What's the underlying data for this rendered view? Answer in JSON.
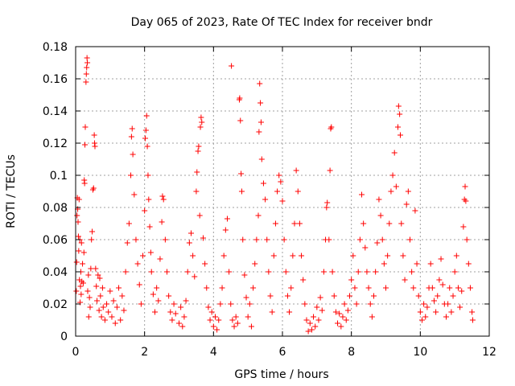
{
  "chart_data": {
    "type": "scatter",
    "title": "Day 065 of 2023, Rate Of TEC Index for receiver bndr",
    "xlabel": "GPS time / hours",
    "ylabel": "ROTI / TECUs",
    "xlim": [
      0,
      12
    ],
    "ylim": [
      0,
      0.18
    ],
    "x_ticks": [
      "0",
      "2",
      "4",
      "6",
      "8",
      "10",
      "12"
    ],
    "y_ticks": [
      "0",
      "0.02",
      "0.04",
      "0.06",
      "0.08",
      "0.1",
      "0.12",
      "0.14",
      "0.16",
      "0.18"
    ],
    "grid": true,
    "marker": "plus",
    "series": [
      {
        "color": "#ff0000",
        "points": [
          [
            0.02,
            0.028
          ],
          [
            0.03,
            0.046
          ],
          [
            0.04,
            0.075
          ],
          [
            0.05,
            0.086
          ],
          [
            0.06,
            0.079
          ],
          [
            0.07,
            0.071
          ],
          [
            0.08,
            0.062
          ],
          [
            0.09,
            0.053
          ],
          [
            0.1,
            0.085
          ],
          [
            0.11,
            0.035
          ],
          [
            0.12,
            0.06
          ],
          [
            0.13,
            0.021
          ],
          [
            0.14,
            0.031
          ],
          [
            0.15,
            0.04
          ],
          [
            0.16,
            0.026
          ],
          [
            0.17,
            0.058
          ],
          [
            0.18,
            0.034
          ],
          [
            0.2,
            0.045
          ],
          [
            0.22,
            0.033
          ],
          [
            0.24,
            0.052
          ],
          [
            0.25,
            0.097
          ],
          [
            0.26,
            0.095
          ],
          [
            0.27,
            0.119
          ],
          [
            0.28,
            0.13
          ],
          [
            0.3,
            0.158
          ],
          [
            0.31,
            0.163
          ],
          [
            0.32,
            0.167
          ],
          [
            0.33,
            0.173
          ],
          [
            0.34,
            0.17
          ],
          [
            0.35,
            0.028
          ],
          [
            0.37,
            0.038
          ],
          [
            0.38,
            0.012
          ],
          [
            0.4,
            0.024
          ],
          [
            0.42,
            0.018
          ],
          [
            0.44,
            0.042
          ],
          [
            0.46,
            0.06
          ],
          [
            0.48,
            0.065
          ],
          [
            0.5,
            0.091
          ],
          [
            0.52,
            0.092
          ],
          [
            0.54,
            0.125
          ],
          [
            0.55,
            0.12
          ],
          [
            0.56,
            0.118
          ],
          [
            0.58,
            0.042
          ],
          [
            0.6,
            0.031
          ],
          [
            0.62,
            0.022
          ],
          [
            0.65,
            0.038
          ],
          [
            0.68,
            0.016
          ],
          [
            0.7,
            0.036
          ],
          [
            0.72,
            0.025
          ],
          [
            0.75,
            0.012
          ],
          [
            0.78,
            0.03
          ],
          [
            0.8,
            0.018
          ],
          [
            0.85,
            0.01
          ],
          [
            0.9,
            0.02
          ],
          [
            0.95,
            0.015
          ],
          [
            1.0,
            0.028
          ],
          [
            1.05,
            0.012
          ],
          [
            1.1,
            0.022
          ],
          [
            1.15,
            0.008
          ],
          [
            1.2,
            0.018
          ],
          [
            1.25,
            0.03
          ],
          [
            1.3,
            0.01
          ],
          [
            1.35,
            0.025
          ],
          [
            1.4,
            0.016
          ],
          [
            1.45,
            0.04
          ],
          [
            1.5,
            0.058
          ],
          [
            1.55,
            0.07
          ],
          [
            1.6,
            0.1
          ],
          [
            1.62,
            0.124
          ],
          [
            1.64,
            0.129
          ],
          [
            1.66,
            0.113
          ],
          [
            1.7,
            0.088
          ],
          [
            1.75,
            0.06
          ],
          [
            1.8,
            0.045
          ],
          [
            1.85,
            0.032
          ],
          [
            1.9,
            0.02
          ],
          [
            1.95,
            0.05
          ],
          [
            2.0,
            0.078
          ],
          [
            2.02,
            0.123
          ],
          [
            2.04,
            0.128
          ],
          [
            2.06,
            0.137
          ],
          [
            2.08,
            0.118
          ],
          [
            2.1,
            0.1
          ],
          [
            2.12,
            0.085
          ],
          [
            2.15,
            0.068
          ],
          [
            2.18,
            0.052
          ],
          [
            2.2,
            0.04
          ],
          [
            2.25,
            0.026
          ],
          [
            2.3,
            0.015
          ],
          [
            2.35,
            0.03
          ],
          [
            2.4,
            0.022
          ],
          [
            2.45,
            0.048
          ],
          [
            2.5,
            0.071
          ],
          [
            2.52,
            0.087
          ],
          [
            2.55,
            0.085
          ],
          [
            2.6,
            0.06
          ],
          [
            2.65,
            0.04
          ],
          [
            2.7,
            0.025
          ],
          [
            2.75,
            0.015
          ],
          [
            2.8,
            0.01
          ],
          [
            2.85,
            0.02
          ],
          [
            2.9,
            0.014
          ],
          [
            3.0,
            0.008
          ],
          [
            3.05,
            0.018
          ],
          [
            3.1,
            0.006
          ],
          [
            3.15,
            0.012
          ],
          [
            3.2,
            0.022
          ],
          [
            3.25,
            0.04
          ],
          [
            3.3,
            0.058
          ],
          [
            3.35,
            0.064
          ],
          [
            3.4,
            0.05
          ],
          [
            3.45,
            0.037
          ],
          [
            3.5,
            0.09
          ],
          [
            3.52,
            0.102
          ],
          [
            3.55,
            0.115
          ],
          [
            3.57,
            0.118
          ],
          [
            3.6,
            0.075
          ],
          [
            3.62,
            0.13
          ],
          [
            3.64,
            0.136
          ],
          [
            3.66,
            0.133
          ],
          [
            3.7,
            0.061
          ],
          [
            3.75,
            0.045
          ],
          [
            3.8,
            0.03
          ],
          [
            3.85,
            0.018
          ],
          [
            3.9,
            0.01
          ],
          [
            3.95,
            0.015
          ],
          [
            4.0,
            0.006
          ],
          [
            4.05,
            0.012
          ],
          [
            4.1,
            0.004
          ],
          [
            4.15,
            0.01
          ],
          [
            4.2,
            0.02
          ],
          [
            4.25,
            0.03
          ],
          [
            4.3,
            0.05
          ],
          [
            4.35,
            0.066
          ],
          [
            4.4,
            0.073
          ],
          [
            4.45,
            0.04
          ],
          [
            4.5,
            0.02
          ],
          [
            4.52,
            0.168
          ],
          [
            4.55,
            0.01
          ],
          [
            4.6,
            0.006
          ],
          [
            4.65,
            0.012
          ],
          [
            4.7,
            0.008
          ],
          [
            4.75,
            0.147
          ],
          [
            4.76,
            0.148
          ],
          [
            4.78,
            0.134
          ],
          [
            4.8,
            0.101
          ],
          [
            4.82,
            0.09
          ],
          [
            4.85,
            0.06
          ],
          [
            4.9,
            0.038
          ],
          [
            4.95,
            0.024
          ],
          [
            5.0,
            0.012
          ],
          [
            5.05,
            0.02
          ],
          [
            5.1,
            0.006
          ],
          [
            5.15,
            0.03
          ],
          [
            5.2,
            0.045
          ],
          [
            5.25,
            0.06
          ],
          [
            5.3,
            0.075
          ],
          [
            5.32,
            0.127
          ],
          [
            5.34,
            0.157
          ],
          [
            5.36,
            0.145
          ],
          [
            5.38,
            0.133
          ],
          [
            5.4,
            0.11
          ],
          [
            5.45,
            0.095
          ],
          [
            5.5,
            0.085
          ],
          [
            5.55,
            0.06
          ],
          [
            5.6,
            0.04
          ],
          [
            5.65,
            0.025
          ],
          [
            5.7,
            0.015
          ],
          [
            5.75,
            0.05
          ],
          [
            5.8,
            0.07
          ],
          [
            5.85,
            0.09
          ],
          [
            5.9,
            0.1
          ],
          [
            5.95,
            0.096
          ],
          [
            6.0,
            0.084
          ],
          [
            6.05,
            0.06
          ],
          [
            6.1,
            0.04
          ],
          [
            6.15,
            0.025
          ],
          [
            6.2,
            0.015
          ],
          [
            6.25,
            0.03
          ],
          [
            6.3,
            0.05
          ],
          [
            6.35,
            0.07
          ],
          [
            6.4,
            0.103
          ],
          [
            6.45,
            0.09
          ],
          [
            6.5,
            0.07
          ],
          [
            6.55,
            0.05
          ],
          [
            6.6,
            0.035
          ],
          [
            6.65,
            0.02
          ],
          [
            6.7,
            0.01
          ],
          [
            6.75,
            0.003
          ],
          [
            6.8,
            0.008
          ],
          [
            6.85,
            0.004
          ],
          [
            6.9,
            0.012
          ],
          [
            6.95,
            0.006
          ],
          [
            7.0,
            0.018
          ],
          [
            7.05,
            0.01
          ],
          [
            7.1,
            0.024
          ],
          [
            7.15,
            0.016
          ],
          [
            7.2,
            0.04
          ],
          [
            7.25,
            0.06
          ],
          [
            7.28,
            0.08
          ],
          [
            7.3,
            0.083
          ],
          [
            7.35,
            0.06
          ],
          [
            7.38,
            0.103
          ],
          [
            7.4,
            0.129
          ],
          [
            7.42,
            0.13
          ],
          [
            7.45,
            0.04
          ],
          [
            7.5,
            0.025
          ],
          [
            7.55,
            0.015
          ],
          [
            7.6,
            0.008
          ],
          [
            7.65,
            0.014
          ],
          [
            7.7,
            0.006
          ],
          [
            7.75,
            0.012
          ],
          [
            7.8,
            0.02
          ],
          [
            7.85,
            0.01
          ],
          [
            7.9,
            0.016
          ],
          [
            7.95,
            0.025
          ],
          [
            8.0,
            0.035
          ],
          [
            8.05,
            0.05
          ],
          [
            8.1,
            0.03
          ],
          [
            8.15,
            0.02
          ],
          [
            8.2,
            0.04
          ],
          [
            8.25,
            0.06
          ],
          [
            8.3,
            0.088
          ],
          [
            8.35,
            0.07
          ],
          [
            8.4,
            0.055
          ],
          [
            8.45,
            0.04
          ],
          [
            8.5,
            0.03
          ],
          [
            8.55,
            0.02
          ],
          [
            8.6,
            0.012
          ],
          [
            8.65,
            0.025
          ],
          [
            8.7,
            0.04
          ],
          [
            8.75,
            0.058
          ],
          [
            8.8,
            0.085
          ],
          [
            8.85,
            0.075
          ],
          [
            8.9,
            0.06
          ],
          [
            8.95,
            0.045
          ],
          [
            9.0,
            0.03
          ],
          [
            9.05,
            0.05
          ],
          [
            9.1,
            0.07
          ],
          [
            9.15,
            0.09
          ],
          [
            9.2,
            0.1
          ],
          [
            9.25,
            0.114
          ],
          [
            9.3,
            0.093
          ],
          [
            9.35,
            0.13
          ],
          [
            9.37,
            0.143
          ],
          [
            9.4,
            0.138
          ],
          [
            9.42,
            0.125
          ],
          [
            9.45,
            0.07
          ],
          [
            9.5,
            0.05
          ],
          [
            9.55,
            0.035
          ],
          [
            9.6,
            0.082
          ],
          [
            9.65,
            0.09
          ],
          [
            9.7,
            0.06
          ],
          [
            9.75,
            0.04
          ],
          [
            9.8,
            0.03
          ],
          [
            9.85,
            0.078
          ],
          [
            9.9,
            0.045
          ],
          [
            9.95,
            0.025
          ],
          [
            10.0,
            0.015
          ],
          [
            10.05,
            0.01
          ],
          [
            10.1,
            0.02
          ],
          [
            10.15,
            0.012
          ],
          [
            10.2,
            0.018
          ],
          [
            10.25,
            0.03
          ],
          [
            10.3,
            0.045
          ],
          [
            10.35,
            0.03
          ],
          [
            10.4,
            0.022
          ],
          [
            10.45,
            0.015
          ],
          [
            10.5,
            0.025
          ],
          [
            10.55,
            0.035
          ],
          [
            10.6,
            0.048
          ],
          [
            10.65,
            0.032
          ],
          [
            10.7,
            0.02
          ],
          [
            10.75,
            0.012
          ],
          [
            10.8,
            0.02
          ],
          [
            10.85,
            0.03
          ],
          [
            10.9,
            0.015
          ],
          [
            10.95,
            0.025
          ],
          [
            11.0,
            0.04
          ],
          [
            11.05,
            0.05
          ],
          [
            11.1,
            0.03
          ],
          [
            11.15,
            0.018
          ],
          [
            11.2,
            0.028
          ],
          [
            11.25,
            0.068
          ],
          [
            11.28,
            0.085
          ],
          [
            11.3,
            0.093
          ],
          [
            11.32,
            0.084
          ],
          [
            11.35,
            0.06
          ],
          [
            11.4,
            0.045
          ],
          [
            11.45,
            0.03
          ],
          [
            11.5,
            0.015
          ],
          [
            11.52,
            0.01
          ]
        ]
      }
    ]
  }
}
